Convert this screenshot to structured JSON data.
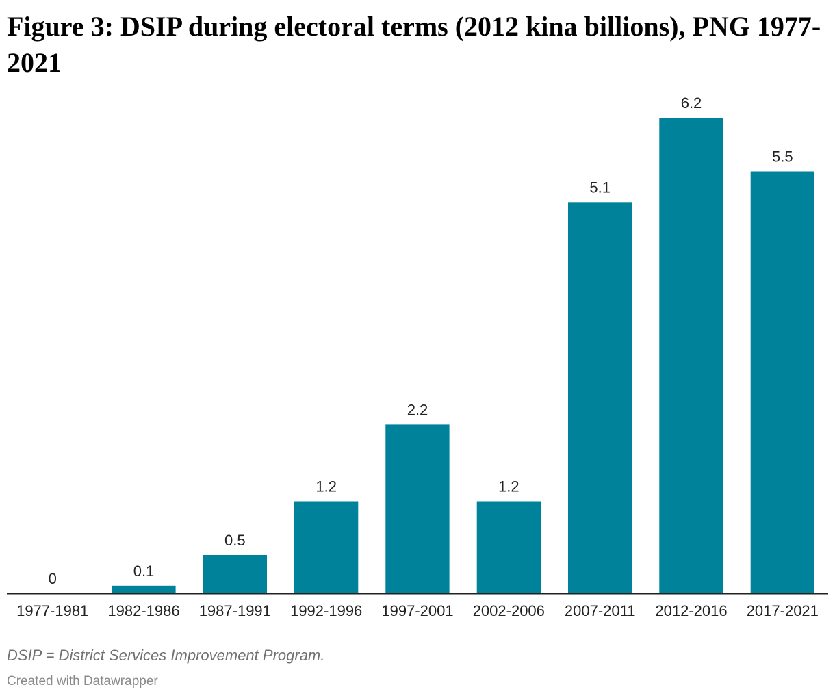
{
  "chart_data": {
    "type": "bar",
    "title": "Figure 3: DSIP during electoral terms (2012 kina billions), PNG 1977-2021",
    "categories": [
      "1977-1981",
      "1982-1986",
      "1987-1991",
      "1992-1996",
      "1997-2001",
      "2002-2006",
      "2007-2011",
      "2012-2016",
      "2017-2021"
    ],
    "values": [
      0,
      0.1,
      0.5,
      1.2,
      2.2,
      1.2,
      5.1,
      6.2,
      5.5
    ],
    "value_labels": [
      "0",
      "0.1",
      "0.5",
      "1.2",
      "2.2",
      "1.2",
      "5.1",
      "6.2",
      "5.5"
    ],
    "xlabel": "",
    "ylabel": "",
    "ylim": [
      0,
      6.2
    ],
    "grid": false,
    "legend": "none",
    "bar_color": "#00829b",
    "axis_color": "#222222"
  },
  "notes": "DSIP = District Services Improvement Program.",
  "credit": "Created with Datawrapper"
}
